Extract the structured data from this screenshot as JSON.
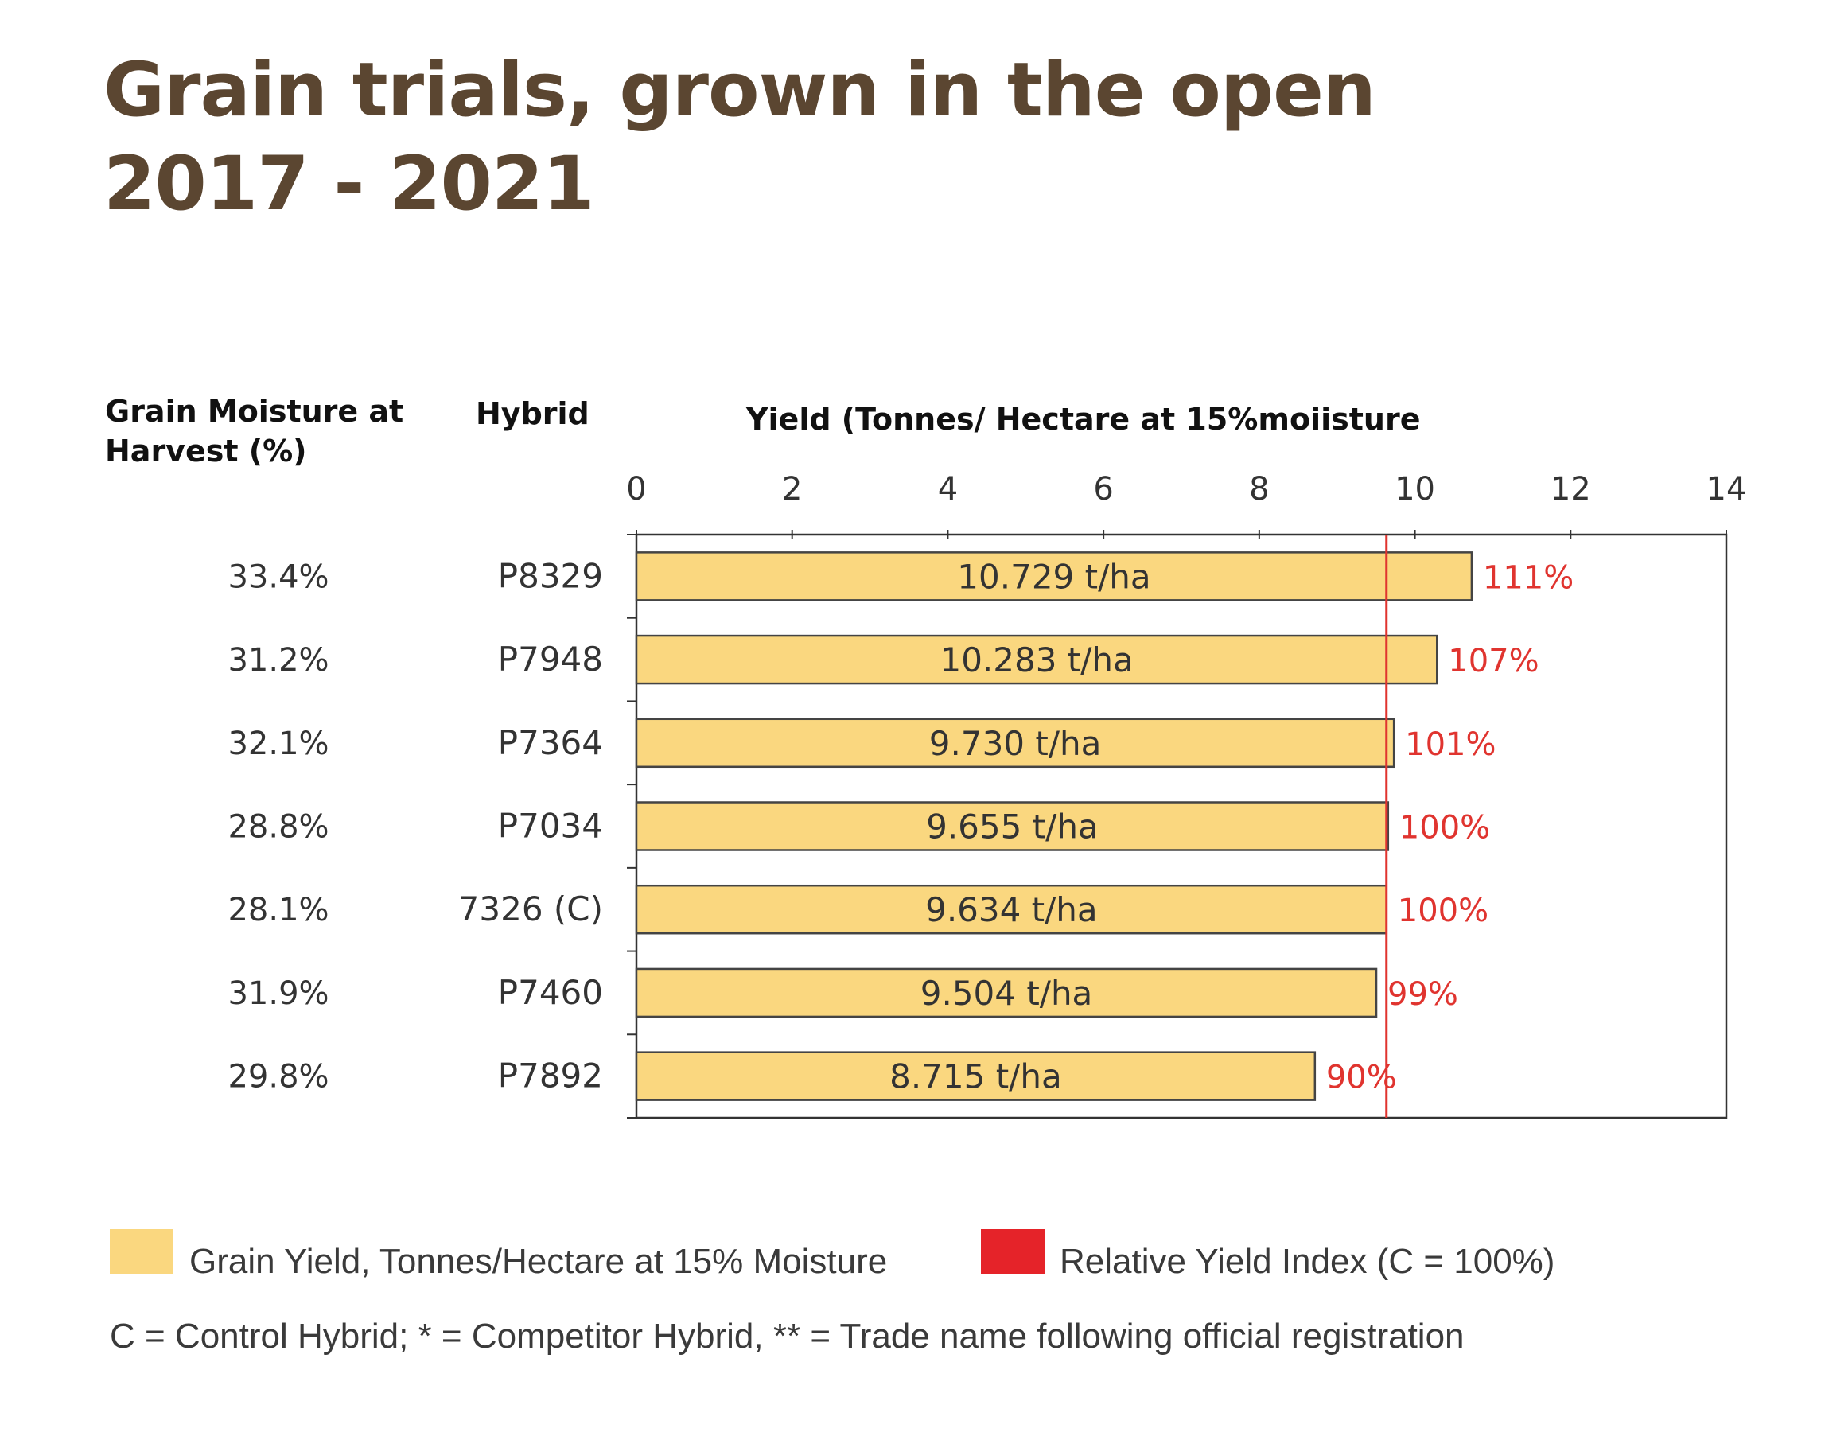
{
  "title": {
    "line1": "Grain trials, grown in the open",
    "line2": "2017 - 2021"
  },
  "headers": {
    "moisture": "Grain Moisture at Harvest (%)",
    "hybrid": "Hybrid",
    "yield": "Yield (Tonnes/ Hectare at 15%moiisture"
  },
  "colors": {
    "bar": "#fad77f",
    "bar_stroke": "#444444",
    "index_line": "#e0342f",
    "index_text": "#e0342f",
    "title": "#5b4631"
  },
  "chart_data": {
    "type": "bar",
    "orientation": "horizontal",
    "categories": [
      "P8329",
      "P7948",
      "P7364",
      "P7034",
      "7326 (C)",
      "P7460",
      "P7892"
    ],
    "series": [
      {
        "name": "Grain Yield, Tonnes/Hectare at 15% Moisture",
        "values": [
          10.729,
          10.283,
          9.73,
          9.655,
          9.634,
          9.504,
          8.715
        ],
        "labels": [
          "10.729 t/ha",
          "10.283 t/ha",
          "9.730 t/ha",
          "9.655 t/ha",
          "9.634 t/ha",
          "9.504 t/ha",
          "8.715 t/ha"
        ]
      }
    ],
    "relative_index": [
      "111%",
      "107%",
      "101%",
      "100%",
      "100%",
      "99%",
      "90%"
    ],
    "moisture": [
      "33.4%",
      "31.2%",
      "32.1%",
      "28.8%",
      "28.1%",
      "31.9%",
      "29.8%"
    ],
    "reference_value": 9.634,
    "xlim": [
      0,
      14
    ],
    "xticks": [
      0,
      2,
      4,
      6,
      8,
      10,
      12,
      14
    ],
    "xlabel": "Yield (Tonnes/ Hectare at 15%moiisture",
    "grid": false
  },
  "legend": {
    "yield_label": "Grain Yield, Tonnes/Hectare at 15% Moisture",
    "index_label": "Relative Yield Index (C = 100%)"
  },
  "footnote": "C = Control Hybrid; * = Competitor Hybrid, ** = Trade name following official registration"
}
